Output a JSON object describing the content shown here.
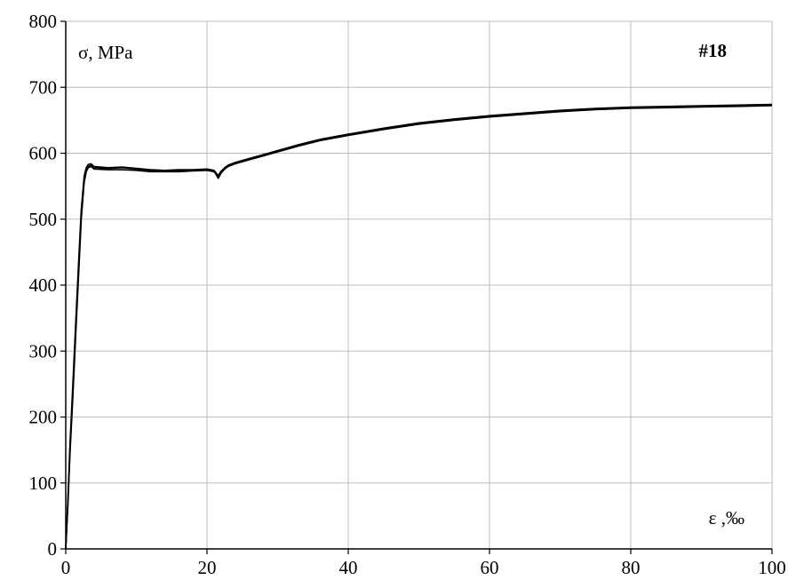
{
  "chart_data": {
    "type": "line",
    "title": "",
    "xlabel": "ε ,‰",
    "ylabel": "σ, MPa",
    "annotation": "#18",
    "xlim": [
      0,
      100
    ],
    "ylim": [
      0,
      800
    ],
    "x_ticks": [
      0,
      20,
      40,
      60,
      80,
      100
    ],
    "y_ticks": [
      0,
      100,
      200,
      300,
      400,
      500,
      600,
      700,
      800
    ],
    "x_tick_labels": [
      "0",
      "20",
      "40",
      "60",
      "80",
      "100"
    ],
    "y_tick_labels": [
      "0",
      "100",
      "200",
      "300",
      "400",
      "500",
      "600",
      "700",
      "800"
    ],
    "grid": true,
    "legend": "none",
    "line_color": "#000000",
    "series": [
      {
        "x": [
          0,
          0.3,
          0.6,
          1.0,
          1.4,
          1.8,
          2.2,
          2.6,
          2.9,
          3.2,
          3.6,
          4,
          6,
          8,
          10,
          12,
          14,
          16,
          18,
          20,
          21,
          21.6,
          22,
          22.5,
          23,
          24,
          26,
          28,
          30,
          33,
          36,
          40,
          45,
          50,
          55,
          60,
          65,
          70,
          75,
          80,
          85,
          90,
          95,
          100
        ],
        "y": [
          0,
          70,
          150,
          240,
          330,
          420,
          510,
          560,
          575,
          580,
          582,
          578,
          577,
          578,
          576,
          574,
          573,
          574,
          574,
          575,
          573,
          562,
          570,
          576,
          580,
          584,
          590,
          596,
          602,
          611,
          619,
          627,
          636,
          644,
          650,
          655,
          659,
          663,
          666,
          668,
          669,
          670,
          671,
          672
        ]
      },
      {
        "x": [
          0,
          0.3,
          0.6,
          1.0,
          1.4,
          1.8,
          2.2,
          2.6,
          2.9,
          3.2,
          3.6,
          4,
          6,
          8,
          10,
          12,
          14,
          16,
          18,
          20,
          21,
          21.6,
          22,
          22.5,
          23,
          24,
          26,
          28,
          30,
          33,
          36,
          40,
          45,
          50,
          55,
          60,
          65,
          70,
          75,
          80,
          85,
          90,
          95,
          100
        ],
        "y": [
          0,
          65,
          145,
          230,
          320,
          410,
          500,
          555,
          572,
          578,
          580,
          576,
          575,
          575,
          574,
          572,
          572,
          572,
          573,
          574,
          572,
          565,
          572,
          578,
          582,
          586,
          592,
          598,
          604,
          613,
          621,
          629,
          638,
          646,
          652,
          657,
          661,
          665,
          668,
          670,
          671,
          672,
          673,
          674
        ]
      },
      {
        "x": [
          0,
          0.3,
          0.6,
          1.0,
          1.4,
          1.8,
          2.2,
          2.6,
          2.9,
          3.2,
          3.6,
          4,
          6,
          8,
          10,
          12,
          14,
          16,
          18,
          20,
          21,
          21.6,
          22,
          22.5,
          23,
          24,
          26,
          28,
          30,
          33,
          36,
          40,
          45,
          50,
          55,
          60,
          65,
          70,
          75,
          80,
          85,
          90,
          95,
          100
        ],
        "y": [
          0,
          75,
          160,
          250,
          340,
          430,
          515,
          565,
          578,
          583,
          584,
          580,
          578,
          579,
          577,
          575,
          574,
          575,
          575,
          576,
          574,
          566,
          573,
          577,
          581,
          585,
          591,
          597,
          603,
          612,
          620,
          628,
          637,
          645,
          651,
          656,
          660,
          664,
          667,
          669,
          670,
          671,
          672,
          673
        ]
      }
    ]
  }
}
